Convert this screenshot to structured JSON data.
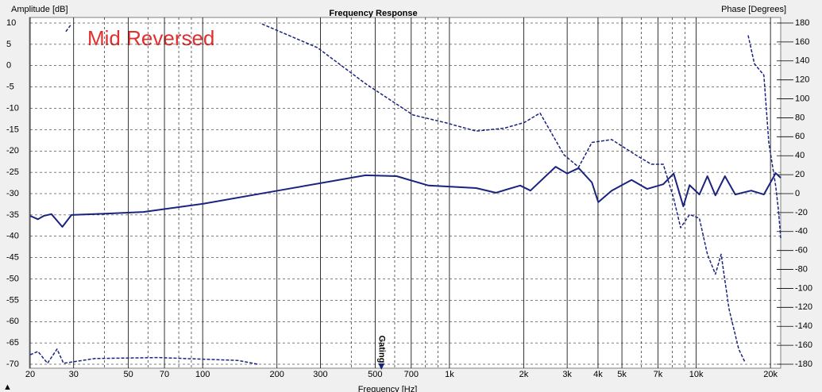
{
  "chart_data": {
    "type": "line",
    "title": "Frequency Response",
    "ylabel": "Amplitude [dB]",
    "y2label": "Phase [Degrees]",
    "xlabel": "Frequency [Hz]",
    "annotation": "Mid Reversed",
    "gating": {
      "label": "Gating",
      "x": 530
    },
    "log_x": true,
    "grid": true,
    "xlim": [
      20,
      22000
    ],
    "xticks": [
      20,
      30,
      50,
      70,
      100,
      200,
      300,
      500,
      700,
      {
        "value": 1000,
        "label": "1k"
      },
      {
        "value": 2000,
        "label": "2k"
      },
      {
        "value": 3000,
        "label": "3k"
      },
      {
        "value": 4000,
        "label": "4k"
      },
      {
        "value": 5000,
        "label": "5k"
      },
      {
        "value": 7000,
        "label": "7k"
      },
      {
        "value": 10000,
        "label": "10k"
      },
      {
        "value": 20000,
        "label": "20k"
      }
    ],
    "xminor_ticks": [
      40,
      60,
      80,
      90,
      400,
      600,
      800,
      900,
      6000,
      8000,
      9000
    ],
    "ylim": [
      -70,
      10
    ],
    "yticks": [
      10,
      5,
      0,
      -5,
      -10,
      -15,
      -20,
      -25,
      -30,
      -35,
      -40,
      -45,
      -50,
      -55,
      -60,
      -65,
      -70
    ],
    "y2lim": [
      -180,
      180
    ],
    "y2ticks": [
      180,
      160,
      140,
      120,
      100,
      80,
      60,
      40,
      20,
      0,
      -20,
      -40,
      -60,
      -80,
      -100,
      -120,
      -140,
      -160,
      -180
    ],
    "series": [
      {
        "color": "#1a237e",
        "dash": false,
        "x": [
          20,
          21.5,
          22.7,
          24.4,
          27,
          29.4,
          36.6,
          57.5,
          100,
          202,
          457,
          611,
          823,
          1283,
          1542,
          1935,
          2130,
          2694,
          3000,
          3340,
          3780,
          4010,
          4550,
          5470,
          6330,
          7350,
          8100,
          8870,
          9400,
          10300,
          11100,
          11960,
          13080,
          14400,
          16700,
          18800,
          21000,
          22000
        ],
        "values": [
          -35.2,
          -36,
          -35.2,
          -34.8,
          -37.8,
          -35,
          -34.8,
          -34.3,
          -32.4,
          -29.3,
          -25.7,
          -25.9,
          -28.1,
          -28.7,
          -29.8,
          -28.1,
          -29.3,
          -23.7,
          -25.3,
          -24,
          -27.4,
          -32,
          -29.3,
          -26.8,
          -28.9,
          -27.8,
          -25.3,
          -33,
          -28,
          -30.2,
          -25.9,
          -30.4,
          -25.9,
          -30.2,
          -29.3,
          -30.2,
          -25.2,
          -26.3
        ]
      },
      {
        "color": "#1a237e",
        "dash": true,
        "axis": "y2",
        "x": [
          20,
          21.5,
          23.5,
          25.7,
          27.3,
          36.6,
          66,
          139,
          167,
          null,
          27.9,
          29.4,
          null,
          174,
          292,
          457,
          712,
          957,
          1283,
          1667,
          2010,
          2330,
          2910,
          3340,
          3780,
          4550,
          5670,
          6580,
          7350,
          8100,
          8650,
          9400,
          10300,
          11100,
          11960,
          12620,
          13590,
          14860,
          15770,
          null,
          16240,
          17210,
          18800,
          19690,
          21000,
          21530,
          22000
        ],
        "values": [
          -170,
          -166.5,
          -179,
          -164,
          -179,
          -174,
          -173,
          -176,
          -180,
          null,
          171,
          179,
          null,
          179,
          154,
          116,
          83,
          75,
          66,
          69,
          75,
          85,
          41,
          28,
          54,
          57,
          41,
          31,
          31,
          -5,
          -36,
          -22,
          -26,
          -64,
          -85,
          -64,
          -122,
          -164,
          -178,
          null,
          167,
          137,
          125,
          54,
          8,
          -17,
          -47
        ]
      }
    ]
  }
}
